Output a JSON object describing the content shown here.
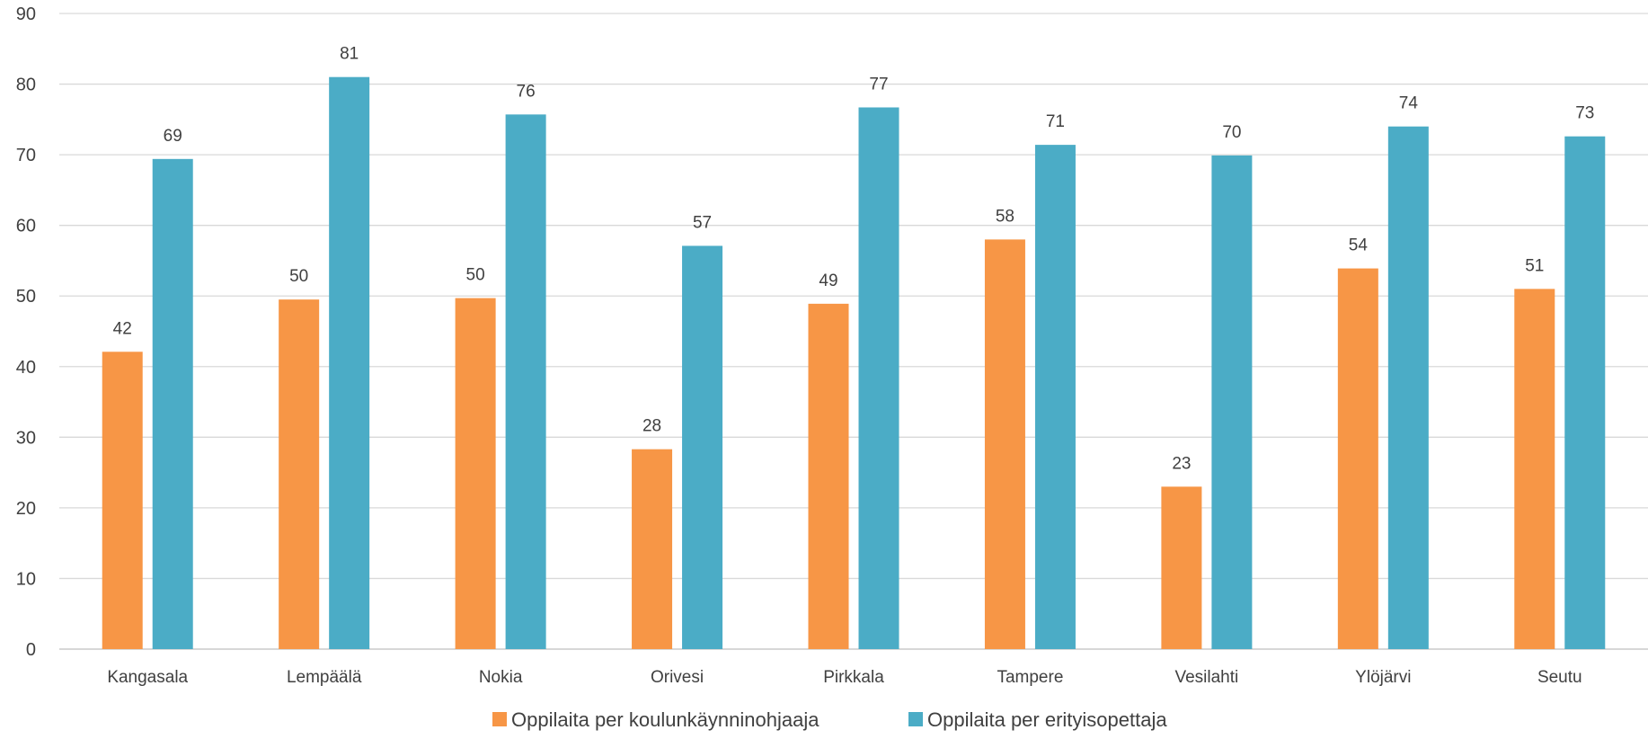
{
  "chart_data": {
    "type": "bar",
    "title": "",
    "xlabel": "",
    "ylabel": "",
    "ylim": [
      0,
      90
    ],
    "yticks": [
      0,
      10,
      20,
      30,
      40,
      50,
      60,
      70,
      80,
      90
    ],
    "grid": true,
    "legend_position": "bottom",
    "categories": [
      "Kangasala",
      "Lempäälä",
      "Nokia",
      "Orivesi",
      "Pirkkala",
      "Tampere",
      "Vesilahti",
      "Ylöjärvi",
      "Seutu"
    ],
    "series": [
      {
        "name": "Oppilaita per koulunkäynninohjaaja",
        "color": "#F79646",
        "values": [
          42.1,
          49.5,
          49.7,
          28.3,
          48.9,
          58.0,
          23.0,
          53.9,
          51.0
        ],
        "labels": [
          "42",
          "50",
          "50",
          "28",
          "49",
          "58",
          "23",
          "54",
          "51"
        ]
      },
      {
        "name": "Oppilaita per erityisopettaja",
        "color": "#4BACC6",
        "values": [
          69.4,
          81.0,
          75.7,
          57.1,
          76.7,
          71.4,
          69.9,
          74.0,
          72.6
        ],
        "labels": [
          "69",
          "81",
          "76",
          "57",
          "77",
          "71",
          "70",
          "74",
          "73"
        ]
      }
    ]
  }
}
